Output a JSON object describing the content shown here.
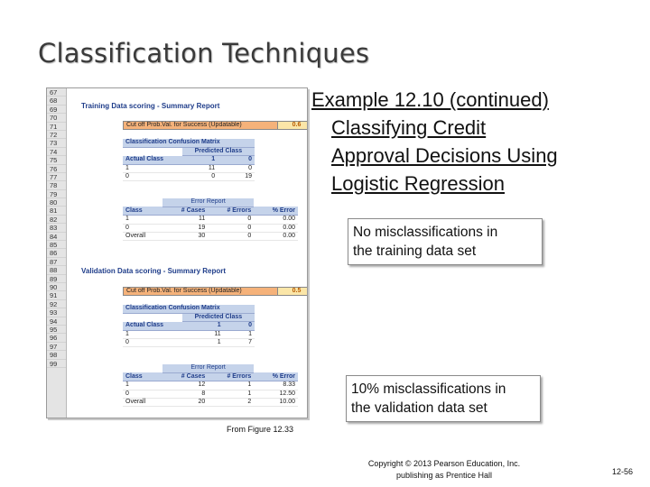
{
  "slide": {
    "title": "Classification Techniques",
    "example_lines": [
      "Example 12.10 (continued)",
      "Classifying Credit",
      "Approval Decisions Using",
      "Logistic Regression"
    ],
    "callout_training": [
      "No misclassifications in",
      "the training data set"
    ],
    "callout_validation": [
      "10% misclassifications in",
      "the validation data set"
    ],
    "figure_caption": "From Figure 12.33",
    "copyright": [
      "Copyright © 2013 Pearson Education, Inc.",
      "publishing as Prentice Hall"
    ],
    "page_number": "12-56"
  },
  "sheet": {
    "row_numbers": [
      "67",
      "68",
      "69",
      "70",
      "71",
      "72",
      "73",
      "74",
      "75",
      "76",
      "77",
      "78",
      "79",
      "80",
      "81",
      "82",
      "83",
      "84",
      "85",
      "86",
      "87",
      "88",
      "89",
      "90",
      "91",
      "92",
      "93",
      "94",
      "95",
      "96",
      "97",
      "98",
      "99"
    ],
    "training": {
      "title": "Training Data scoring - Summary Report",
      "cutoff_label": "Cut off Prob.Val. for Success (Updatable)",
      "cutoff_value": "0.6",
      "confusion_title": "Classification Confusion Matrix",
      "predicted_class": "Predicted Class",
      "actual_class": "Actual Class",
      "col_1": "1",
      "col_0": "0",
      "rows": [
        {
          "label": "1",
          "a": "11",
          "b": "0"
        },
        {
          "label": "0",
          "a": "0",
          "b": "19"
        }
      ],
      "error_report": "Error Report",
      "error_headers": [
        "Class",
        "# Cases",
        "# Errors",
        "% Error"
      ],
      "error_rows": [
        {
          "cls": "1",
          "cases": "11",
          "errors": "0",
          "pct": "0.00"
        },
        {
          "cls": "0",
          "cases": "19",
          "errors": "0",
          "pct": "0.00"
        },
        {
          "cls": "Overall",
          "cases": "30",
          "errors": "0",
          "pct": "0.00"
        }
      ]
    },
    "validation": {
      "title": "Validation Data scoring - Summary Report",
      "cutoff_label": "Cut off Prob.Val. for Success (Updatable)",
      "cutoff_value": "0.5",
      "confusion_title": "Classification Confusion Matrix",
      "predicted_class": "Predicted Class",
      "actual_class": "Actual Class",
      "col_1": "1",
      "col_0": "0",
      "rows": [
        {
          "label": "1",
          "a": "11",
          "b": "1"
        },
        {
          "label": "0",
          "a": "1",
          "b": "7"
        }
      ],
      "error_report": "Error Report",
      "error_headers": [
        "Class",
        "# Cases",
        "# Errors",
        "% Error"
      ],
      "error_rows": [
        {
          "cls": "1",
          "cases": "12",
          "errors": "1",
          "pct": "8.33"
        },
        {
          "cls": "0",
          "cases": "8",
          "errors": "1",
          "pct": "12.50"
        },
        {
          "cls": "Overall",
          "cases": "20",
          "errors": "2",
          "pct": "10.00"
        }
      ]
    }
  }
}
